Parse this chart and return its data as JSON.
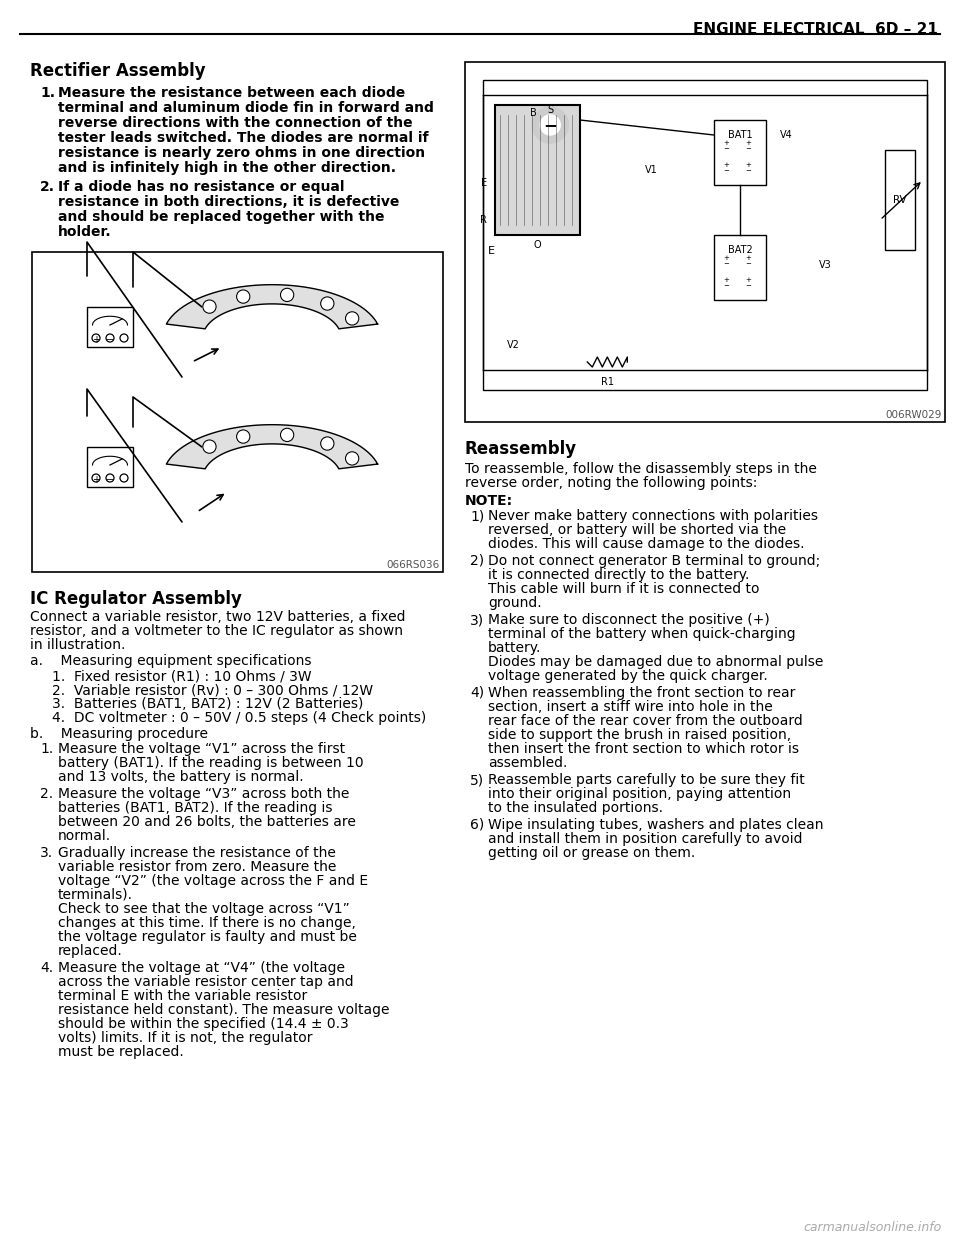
{
  "page_title": "ENGINE ELECTRICAL  6D – 21",
  "bg": "#ffffff",
  "section1_title": "Rectifier Assembly",
  "section1_items": [
    "Measure  the  resistance  between  each  diode terminal  and  aluminum  diode  fin  in  forward  and reverse  directions  with  the  connection  of  the  tester leads  switched.  The  diodes  are  normal  if  resistance is  nearly  zero  ohms  in  one  direction  and  is  infinitely high  in  the  other  direction.",
    "If  a  diode  has  no  resistance  or  equal  resistance  in both  directions,  it  is  defective  and  should  be replaced  together  with  the  holder."
  ],
  "image1_label": "066RS036",
  "image2_label": "006RW029",
  "section2_title": "IC Regulator Assembly",
  "section2_intro": "Connect a variable resistor, two 12V batteries, a fixed resistor, and a voltmeter to the IC regulator as shown in illustration.",
  "section2_a_title": "a.    Measuring equipment specifications",
  "section2_a_items": [
    "1.  Fixed resistor (R1) : 10 Ohms / 3W",
    "2.  Variable resistor (Rv) : 0 – 300 Ohms / 12W",
    "3.  Batteries (BAT1, BAT2) : 12V (2 Batteries)",
    "4.  DC voltmeter : 0 – 50V / 0.5 steps (4 Check points)"
  ],
  "section2_b_title": "b.    Measuring procedure",
  "section2_b_items": [
    [
      "1.",
      "Measure  the  voltage  “V1”  across  the  first  battery (BAT1).  If  the  reading  is  between  10  and  13  volts, the battery is normal."
    ],
    [
      "2.",
      "Measure  the  voltage  “V3”  across  both  the  batteries (BAT1,  BAT2).  If  the  reading  is  between  20  and  26 bolts, the batteries are normal."
    ],
    [
      "3.",
      "Gradually  increase  the  resistance  of  the  variable resistor  from  zero.  Measure  the  voltage  “V2”  (the voltage across the F and E terminals).\nCheck  to  see  that  the  voltage  across  “V1”  changes at  this  time.  If  there  is  no  change,  the  voltage regulator is faulty and must be replaced."
    ],
    [
      "4.",
      "Measure  the  voltage  at  “V4”  (the  voltage  across  the variable  resistor  center  tap  and  terminal  E  with  the variable  resistor  resistance  held  constant).  The measure  voltage  should  be  within  the  specified (14.4  ±  0.3  volts)  limits.  If  it  is  not,  the  regulator must be replaced."
    ]
  ],
  "section3_title": "Reassembly",
  "section3_intro": "To  reassemble,  follow  the  disassembly  steps  in  the reverse order, noting the following points:",
  "section3_note": "NOTE:",
  "section3_items": [
    [
      "1)",
      "Never  make  battery  connections  with  polarities reversed,  or  battery  will  be  shorted  via  the  diodes. This will cause damage to the diodes."
    ],
    [
      "2)",
      "Do  not  connect  generator  B  terminal  to  ground;  it  is connected directly to the battery.\nThis cable will burn if it is connected to ground."
    ],
    [
      "3)",
      "Make  sure  to  disconnect  the  positive  (+)  terminal  of the battery when quick-charging battery.\nDiodes  may  be  damaged  due  to  abnormal  pulse voltage generated by the quick charger."
    ],
    [
      "4)",
      "When  reassembling  the  front  section  to  rear section,  insert  a  stiff  wire  into  hole  in  the  rear  face of  the  rear  cover  from  the  outboard  side  to  support the  brush  in  raised  position,  then  insert  the  front section to which rotor is assembled."
    ],
    [
      "5)",
      "Reassemble  parts  carefully  to  be  sure  they  fit  into their  original  position,  paying  attention  to  the insulated portions."
    ],
    [
      "6)",
      "Wipe  insulating  tubes,  washers  and  plates  clean and  install  them  in  position  carefully  to  avoid  getting oil or grease on them."
    ]
  ],
  "watermark": "carmanualsonline.info"
}
